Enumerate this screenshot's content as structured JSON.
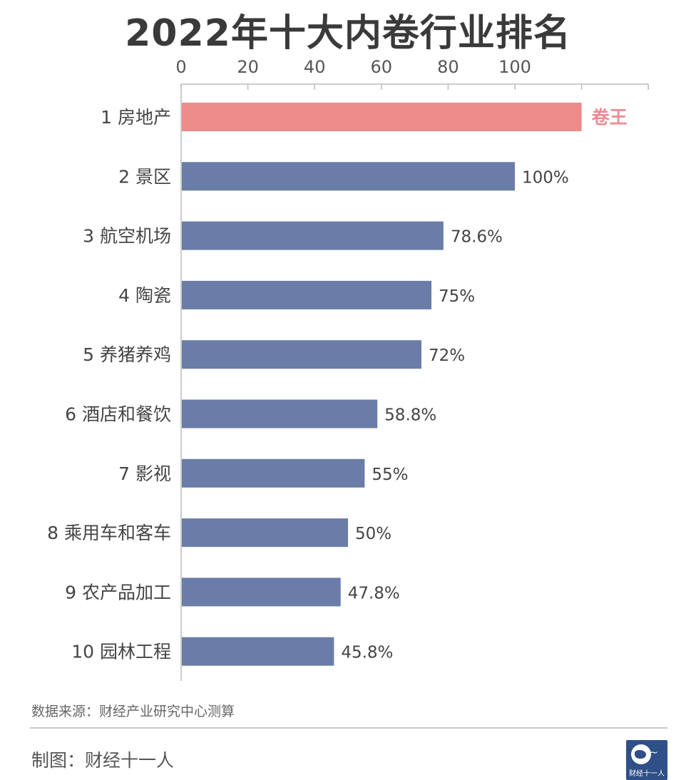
{
  "title": "2022年十大内卷行业排名",
  "source": "数据来源：财经产业研究中心测算",
  "credit": "制图：财经十一人",
  "logo": {
    "text": "财经十一人",
    "script": "十一人"
  },
  "colors": {
    "highlight": "#ec8b87",
    "bar": "#6a7da8",
    "highlight_label": "#ec8b93",
    "axis": "#bbbbbb",
    "text": "#444444"
  },
  "chart_data": {
    "type": "bar",
    "orientation": "horizontal",
    "categories": [
      "1 房地产",
      "2 景区",
      "3 航空机场",
      "4 陶瓷",
      "5 养猪养鸡",
      "6 酒店和餐饮",
      "7 影视",
      "8 乘用车和客车",
      "9 农产品加工",
      "10 园林工程"
    ],
    "values": [
      120,
      100,
      78.6,
      75,
      72,
      58.8,
      55,
      50,
      47.8,
      45.8
    ],
    "data_labels": [
      "卷王",
      "100%",
      "78.6%",
      "75%",
      "72%",
      "58.8%",
      "55%",
      "50%",
      "47.8%",
      "45.8%"
    ],
    "xticks": [
      0,
      20,
      40,
      60,
      80,
      100
    ],
    "xlim": [
      0,
      140
    ],
    "axis_position": "top",
    "grid": false
  }
}
